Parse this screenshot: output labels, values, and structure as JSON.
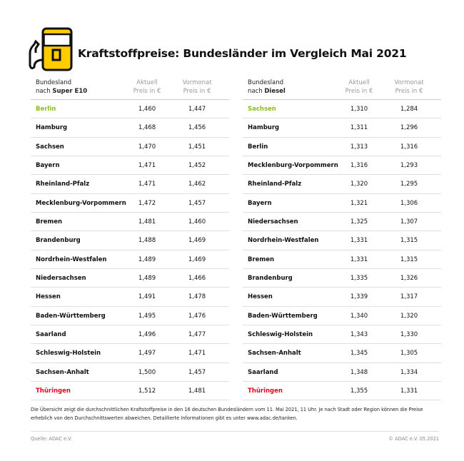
{
  "title": "Kraftstoffpreise: Bundesländer im Vergleich Mai 2021",
  "icon": "fuel-pump-icon",
  "colors": {
    "accent": "#ffcc00",
    "best": "#8dbb1c",
    "worst": "#e2001a"
  },
  "left": {
    "header": {
      "line1": "Bundesland",
      "line2_prefix": "nach ",
      "line2_bold": "Super E10",
      "current": [
        "Aktuell",
        "Preis in €"
      ],
      "previous": [
        "Vormonat",
        "Preis in €"
      ]
    },
    "rows": [
      {
        "name": "Berlin",
        "current": "1,460",
        "previous": "1,447",
        "status": "best"
      },
      {
        "name": "Hamburg",
        "current": "1,468",
        "previous": "1,456"
      },
      {
        "name": "Sachsen",
        "current": "1,470",
        "previous": "1,451"
      },
      {
        "name": "Bayern",
        "current": "1,471",
        "previous": "1,452"
      },
      {
        "name": "Rheinland-Pfalz",
        "current": "1,471",
        "previous": "1,462"
      },
      {
        "name": "Mecklenburg-Vorpommern",
        "current": "1,472",
        "previous": "1,457"
      },
      {
        "name": "Bremen",
        "current": "1,481",
        "previous": "1,460"
      },
      {
        "name": "Brandenburg",
        "current": "1,488",
        "previous": "1,469"
      },
      {
        "name": "Nordrhein-Westfalen",
        "current": "1,489",
        "previous": "1,469"
      },
      {
        "name": "Niedersachsen",
        "current": "1,489",
        "previous": "1,466"
      },
      {
        "name": "Hessen",
        "current": "1,491",
        "previous": "1,478"
      },
      {
        "name": "Baden-Württemberg",
        "current": "1,495",
        "previous": "1,476"
      },
      {
        "name": "Saarland",
        "current": "1,496",
        "previous": "1,477"
      },
      {
        "name": "Schleswig-Holstein",
        "current": "1,497",
        "previous": "1,471"
      },
      {
        "name": "Sachsen-Anhalt",
        "current": "1,500",
        "previous": "1,457"
      },
      {
        "name": "Thüringen",
        "current": "1,512",
        "previous": "1,481",
        "status": "worst"
      }
    ]
  },
  "right": {
    "header": {
      "line1": "Bundesland",
      "line2_prefix": "nach ",
      "line2_bold": "Diesel",
      "current": [
        "Aktuell",
        "Preis in €"
      ],
      "previous": [
        "Vormonat",
        "Preis in €"
      ]
    },
    "rows": [
      {
        "name": "Sachsen",
        "current": "1,310",
        "previous": "1,284",
        "status": "best"
      },
      {
        "name": "Hamburg",
        "current": "1,311",
        "previous": "1,296"
      },
      {
        "name": "Berlin",
        "current": "1,313",
        "previous": "1,316"
      },
      {
        "name": "Mecklenburg-Vorpommern",
        "current": "1,316",
        "previous": "1,293"
      },
      {
        "name": "Rheinland-Pfalz",
        "current": "1,320",
        "previous": "1,295"
      },
      {
        "name": "Bayern",
        "current": "1,321",
        "previous": "1,306"
      },
      {
        "name": "Niedersachsen",
        "current": "1,325",
        "previous": "1,307"
      },
      {
        "name": "Nordrhein-Westfalen",
        "current": "1,331",
        "previous": "1,315"
      },
      {
        "name": "Bremen",
        "current": "1,331",
        "previous": "1,315"
      },
      {
        "name": "Brandenburg",
        "current": "1,335",
        "previous": "1,326"
      },
      {
        "name": "Hessen",
        "current": "1,339",
        "previous": "1,317"
      },
      {
        "name": "Baden-Württemberg",
        "current": "1,340",
        "previous": "1,320"
      },
      {
        "name": "Schleswig-Holstein",
        "current": "1,343",
        "previous": "1,330"
      },
      {
        "name": "Sachsen-Anhalt",
        "current": "1,345",
        "previous": "1,305"
      },
      {
        "name": "Saarland",
        "current": "1,348",
        "previous": "1,334"
      },
      {
        "name": "Thüringen",
        "current": "1,355",
        "previous": "1,331",
        "status": "worst"
      }
    ]
  },
  "note": "Die Übersicht zeigt die durchschnittlichen Kraftstoffpreise in den 16 deutschen Bundesländern vom 11. Mai 2021, 11 Uhr. Je nach Stadt oder Region können die Preise erheblich von den Durchschnittswerten abweichen. Detaillierte Informationen gibt es unter www.adac.de/tanken.",
  "source": "Quelle: ADAC e.V.",
  "copyright": "© ADAC e.V. 05.2021"
}
